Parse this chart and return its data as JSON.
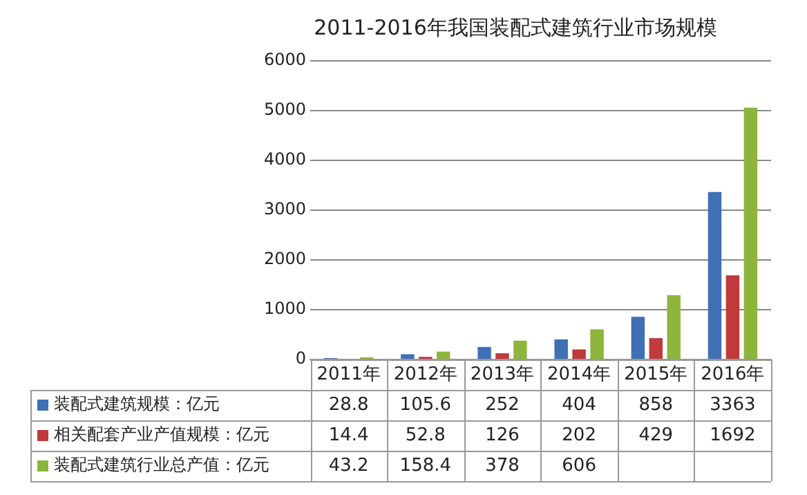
{
  "chart_data": {
    "type": "bar",
    "title": "2011-2016年我国装配式建筑行业市场规模",
    "categories": [
      "2011年",
      "2012年",
      "2013年",
      "2014年",
      "2015年",
      "2016年"
    ],
    "series": [
      {
        "name": "装配式建筑规模：亿元",
        "color": "#3f6fb5",
        "values": [
          28.8,
          105.6,
          252,
          404,
          858,
          3363
        ],
        "value_labels": [
          "28.8",
          "105.6",
          "252",
          "404",
          "858",
          "3363"
        ]
      },
      {
        "name": "相关配套产业产值规模：亿元",
        "color": "#c0393b",
        "values": [
          14.4,
          52.8,
          126,
          202,
          429,
          1692
        ],
        "value_labels": [
          "14.4",
          "52.8",
          "126",
          "202",
          "429",
          "1692"
        ]
      },
      {
        "name": "装配式建筑行业总产值：亿元",
        "color": "#8db53c",
        "values": [
          43.2,
          158.4,
          378,
          606,
          1290,
          5060
        ],
        "value_labels": [
          "43.2",
          "158.4",
          "378",
          "606",
          null,
          null
        ]
      }
    ],
    "ylim": [
      0,
      6000
    ],
    "yticks": [
      0,
      1000,
      2000,
      3000,
      4000,
      5000,
      6000
    ],
    "grid": "y",
    "legend": "bottom left"
  }
}
